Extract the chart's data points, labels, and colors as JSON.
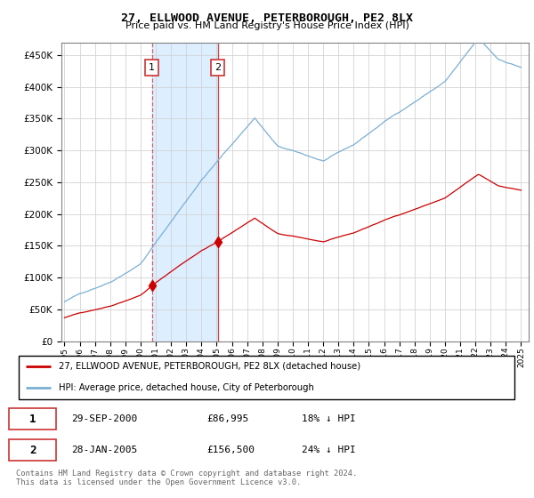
{
  "title": "27, ELLWOOD AVENUE, PETERBOROUGH, PE2 8LX",
  "subtitle": "Price paid vs. HM Land Registry's House Price Index (HPI)",
  "legend_line1": "27, ELLWOOD AVENUE, PETERBOROUGH, PE2 8LX (detached house)",
  "legend_line2": "HPI: Average price, detached house, City of Peterborough",
  "transaction1_date": "29-SEP-2000",
  "transaction1_price": "£86,995",
  "transaction1_hpi": "18% ↓ HPI",
  "transaction2_date": "28-JAN-2005",
  "transaction2_price": "£156,500",
  "transaction2_hpi": "24% ↓ HPI",
  "footer": "Contains HM Land Registry data © Crown copyright and database right 2024.\nThis data is licensed under the Open Government Licence v3.0.",
  "red_color": "#cc0000",
  "blue_color": "#7ab0d4",
  "shaded_color": "#ddeeff",
  "marker1_year": 2000.75,
  "marker1_price": 86995,
  "marker2_year": 2005.07,
  "marker2_price": 156500,
  "ylim_min": 0,
  "ylim_max": 470000,
  "xlim_min": 1994.8,
  "xlim_max": 2025.5
}
